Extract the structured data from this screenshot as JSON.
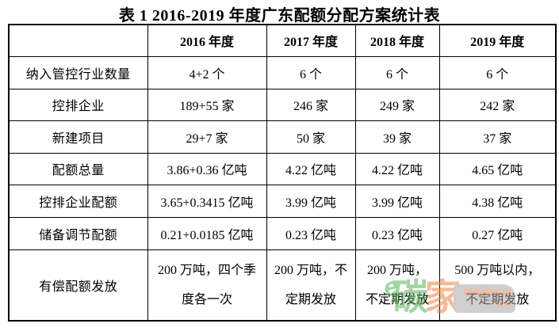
{
  "title": "表 1 2016-2019 年度广东配额分配方案统计表",
  "table": {
    "corner": "",
    "headers": [
      "2016 年度",
      "2017 年度",
      "2018 年度",
      "2019 年度"
    ],
    "rows": [
      {
        "label": "纳入管控行业数量",
        "values": [
          "4+2 个",
          "6 个",
          "6 个",
          "6 个"
        ]
      },
      {
        "label": "控排企业",
        "values": [
          "189+55 家",
          "246 家",
          "249 家",
          "242 家"
        ]
      },
      {
        "label": "新建项目",
        "values": [
          "29+7 家",
          "50 家",
          "39 家",
          "37 家"
        ]
      },
      {
        "label": "配额总量",
        "values": [
          "3.86+0.36 亿吨",
          "4.22 亿吨",
          "4.22 亿吨",
          "4.65 亿吨"
        ]
      },
      {
        "label": "控排企业配额",
        "values": [
          "3.65+0.3415 亿吨",
          "3.99 亿吨",
          "3.99 亿吨",
          "4.38 亿吨"
        ]
      },
      {
        "label": "储备调节配额",
        "values": [
          "0.21+0.0185 亿吨",
          "0.23 亿吨",
          "0.23 亿吨",
          "0.27 亿吨"
        ]
      },
      {
        "label": "有偿配额发放",
        "values": [
          "200 万吨，四个季\n度各一次",
          "200 万吨，不\n定期发放",
          "200 万吨，\n不定期发放",
          "500 万吨以内，\n不定期发放"
        ]
      }
    ]
  },
  "watermark": {
    "e_glyph": "e",
    "green_char": "碳",
    "orange_char": "家",
    "domain": "tanjiaoyi",
    "tld": ".com",
    "green_color": "#57b257",
    "orange_color": "#ef8143",
    "box_color": "#a8a8a8"
  }
}
